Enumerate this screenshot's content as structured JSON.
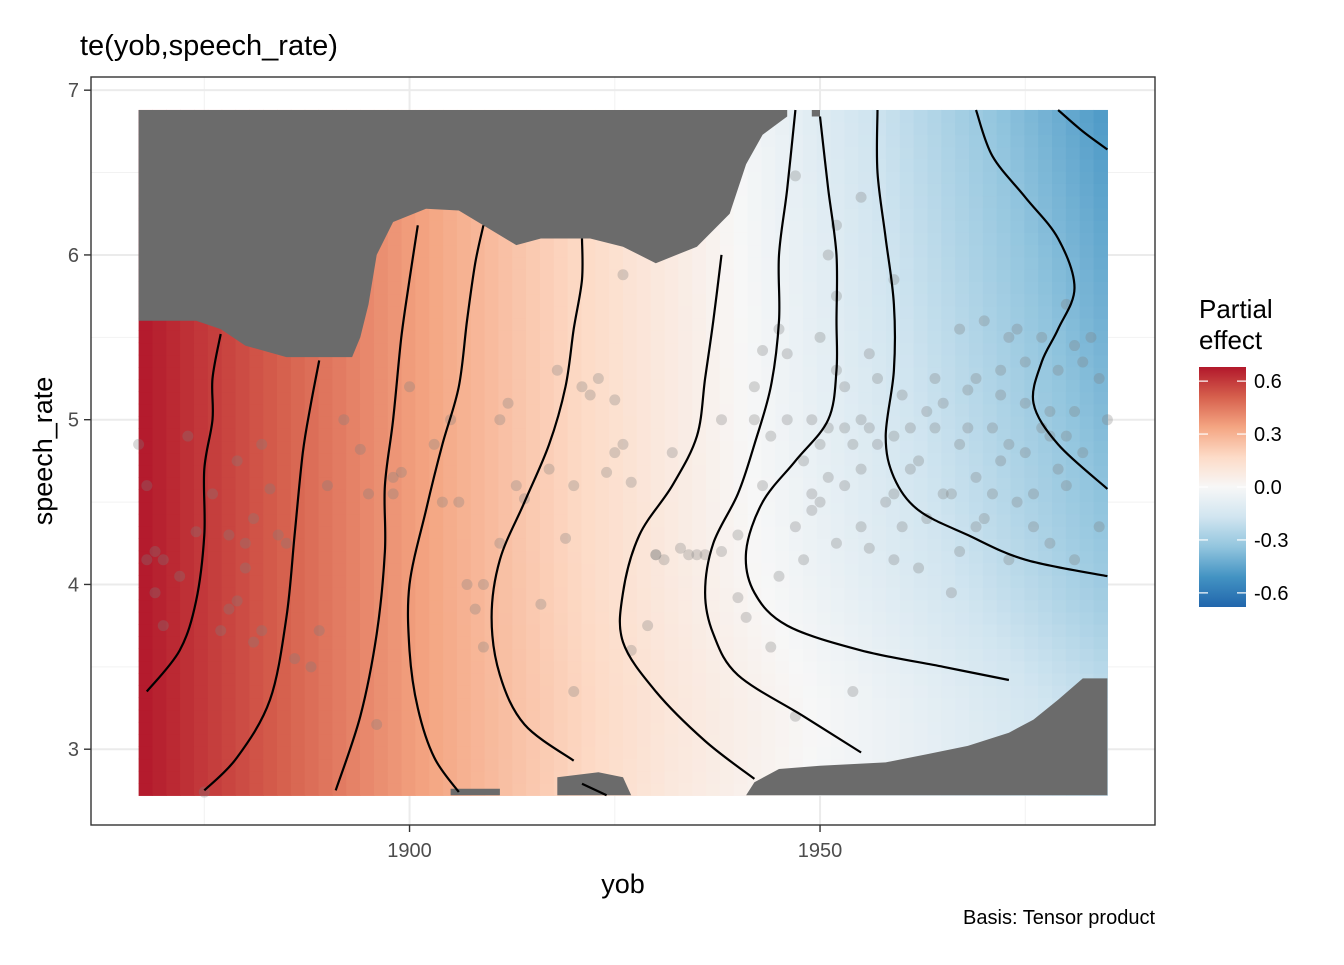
{
  "chart_data": {
    "type": "heatmap",
    "title": "te(yob,speech_rate)",
    "xlabel": "yob",
    "ylabel": "speech_rate",
    "caption": "Basis: Tensor product",
    "xlim": [
      1861.2,
      1990.8
    ],
    "ylim": [
      2.54,
      7.08
    ],
    "x_ticks": [
      1900,
      1950
    ],
    "x_tick_labels": [
      "1900",
      "1950"
    ],
    "y_ticks": [
      3,
      4,
      5,
      6,
      7
    ],
    "y_tick_labels": [
      "3",
      "4",
      "5",
      "6",
      "7"
    ],
    "x_minor_ticks": [
      1875,
      1925,
      1975
    ],
    "y_minor_ticks": [
      3.5,
      4.5,
      5.5,
      6.5
    ],
    "grid": true,
    "legend": {
      "title_lines": [
        "Partial",
        "effect"
      ],
      "position": "right",
      "limits": [
        -0.68,
        0.68
      ],
      "breaks": [
        0.6,
        0.3,
        0.0,
        -0.3,
        -0.6
      ],
      "labels": [
        "0.6",
        "0.3",
        "0.0",
        "-0.3",
        "-0.6"
      ],
      "palette": [
        "#b2182b",
        "#d6604d",
        "#f4a582",
        "#fddbc7",
        "#f7f7f7",
        "#d1e5f0",
        "#92c5de",
        "#4393c3",
        "#2166ac"
      ]
    },
    "na_color": "#6b6b6b",
    "data_region": {
      "yob_range": [
        1867,
        1985
      ],
      "speech_rate_range": [
        2.72,
        6.88
      ]
    },
    "mask_top": [
      [
        1867,
        5.6
      ],
      [
        1874,
        5.6
      ],
      [
        1877,
        5.55
      ],
      [
        1880,
        5.45
      ],
      [
        1885,
        5.38
      ],
      [
        1888,
        5.38
      ],
      [
        1893,
        5.38
      ],
      [
        1894,
        5.5
      ],
      [
        1895,
        5.7
      ],
      [
        1896,
        6.0
      ],
      [
        1898,
        6.2
      ],
      [
        1902,
        6.28
      ],
      [
        1906,
        6.27
      ],
      [
        1910,
        6.15
      ],
      [
        1913,
        6.06
      ],
      [
        1916,
        6.1
      ],
      [
        1922,
        6.1
      ],
      [
        1926,
        6.05
      ],
      [
        1930,
        5.95
      ],
      [
        1935,
        6.05
      ],
      [
        1939,
        6.25
      ],
      [
        1941,
        6.55
      ],
      [
        1943,
        6.73
      ],
      [
        1946,
        6.84
      ],
      [
        1946,
        6.88
      ],
      [
        1867,
        6.88
      ]
    ],
    "mask_top_right": [
      [
        1949,
        6.88
      ],
      [
        1949,
        6.84
      ],
      [
        1950,
        6.84
      ],
      [
        1950,
        6.88
      ]
    ],
    "mask_bottom": [
      [
        1905,
        2.72
      ],
      [
        1905,
        2.76
      ],
      [
        1908,
        2.76
      ],
      [
        1911,
        2.76
      ],
      [
        1911,
        2.72
      ]
    ],
    "mask_bottom_mid": [
      [
        1918,
        2.72
      ],
      [
        1918,
        2.83
      ],
      [
        1923,
        2.86
      ],
      [
        1926,
        2.83
      ],
      [
        1927,
        2.72
      ]
    ],
    "mask_bottom_right": [
      [
        1941,
        2.72
      ],
      [
        1942,
        2.8
      ],
      [
        1945,
        2.88
      ],
      [
        1950,
        2.9
      ],
      [
        1958,
        2.92
      ],
      [
        1963,
        2.97
      ],
      [
        1968,
        3.02
      ],
      [
        1973,
        3.1
      ],
      [
        1976,
        3.18
      ],
      [
        1979,
        3.3
      ],
      [
        1982,
        3.43
      ],
      [
        1985,
        3.43
      ],
      [
        1985,
        2.72
      ]
    ],
    "contours": [
      [
        [
          1868,
          3.35
        ],
        [
          1872,
          3.6
        ],
        [
          1874,
          3.9
        ],
        [
          1875,
          4.3
        ],
        [
          1875,
          4.7
        ],
        [
          1876,
          5.0
        ],
        [
          1876,
          5.25
        ],
        [
          1877,
          5.52
        ]
      ],
      [
        [
          1875,
          2.75
        ],
        [
          1879,
          2.95
        ],
        [
          1883,
          3.3
        ],
        [
          1885,
          3.8
        ],
        [
          1886,
          4.3
        ],
        [
          1887,
          4.8
        ],
        [
          1888,
          5.1
        ],
        [
          1889,
          5.36
        ]
      ],
      [
        [
          1891,
          2.75
        ],
        [
          1894,
          3.2
        ],
        [
          1896,
          3.7
        ],
        [
          1897,
          4.2
        ],
        [
          1897,
          4.6
        ],
        [
          1898,
          5.0
        ],
        [
          1899,
          5.5
        ],
        [
          1900,
          5.85
        ],
        [
          1901,
          6.18
        ]
      ],
      [
        [
          1906,
          2.74
        ],
        [
          1903,
          2.95
        ],
        [
          1901,
          3.25
        ],
        [
          1900,
          3.6
        ],
        [
          1900,
          4.0
        ],
        [
          1902,
          4.45
        ],
        [
          1904,
          4.85
        ],
        [
          1906,
          5.2
        ],
        [
          1907,
          5.6
        ],
        [
          1908,
          5.95
        ],
        [
          1909,
          6.18
        ]
      ],
      [
        [
          1920,
          2.93
        ],
        [
          1914,
          3.15
        ],
        [
          1911,
          3.45
        ],
        [
          1910,
          3.8
        ],
        [
          1911,
          4.15
        ],
        [
          1914,
          4.5
        ],
        [
          1917,
          4.85
        ],
        [
          1919,
          5.2
        ],
        [
          1920,
          5.55
        ],
        [
          1921,
          5.85
        ],
        [
          1921,
          6.1
        ]
      ],
      [
        [
          1942,
          2.82
        ],
        [
          1936,
          3.05
        ],
        [
          1930,
          3.35
        ],
        [
          1926,
          3.65
        ],
        [
          1926,
          3.95
        ],
        [
          1928,
          4.3
        ],
        [
          1932,
          4.6
        ],
        [
          1935,
          4.9
        ],
        [
          1936,
          5.25
        ],
        [
          1937,
          5.6
        ],
        [
          1938,
          6.0
        ]
      ],
      [
        [
          1955,
          2.98
        ],
        [
          1948,
          3.2
        ],
        [
          1940,
          3.45
        ],
        [
          1937,
          3.7
        ],
        [
          1936,
          3.95
        ],
        [
          1937,
          4.25
        ],
        [
          1940,
          4.55
        ],
        [
          1942,
          4.85
        ],
        [
          1944,
          5.2
        ],
        [
          1945,
          5.6
        ],
        [
          1945,
          6.0
        ],
        [
          1946,
          6.4
        ],
        [
          1947,
          6.88
        ]
      ],
      [
        [
          1973,
          3.42
        ],
        [
          1965,
          3.5
        ],
        [
          1955,
          3.6
        ],
        [
          1946,
          3.75
        ],
        [
          1942,
          3.95
        ],
        [
          1941,
          4.2
        ],
        [
          1943,
          4.5
        ],
        [
          1947,
          4.75
        ],
        [
          1951,
          5.0
        ],
        [
          1952,
          5.3
        ],
        [
          1952,
          5.6
        ],
        [
          1952,
          6.0
        ],
        [
          1951,
          6.4
        ],
        [
          1950,
          6.84
        ]
      ],
      [
        [
          1985,
          4.05
        ],
        [
          1975,
          4.15
        ],
        [
          1968,
          4.3
        ],
        [
          1962,
          4.45
        ],
        [
          1959,
          4.65
        ],
        [
          1958,
          4.9
        ],
        [
          1959,
          5.3
        ],
        [
          1959,
          5.7
        ],
        [
          1958,
          6.1
        ],
        [
          1957,
          6.5
        ],
        [
          1957,
          6.88
        ]
      ],
      [
        [
          1985,
          4.58
        ],
        [
          1979,
          4.85
        ],
        [
          1976,
          5.1
        ],
        [
          1977,
          5.35
        ],
        [
          1979,
          5.55
        ],
        [
          1981,
          5.8
        ],
        [
          1979,
          6.1
        ],
        [
          1975,
          6.35
        ],
        [
          1971,
          6.6
        ],
        [
          1969,
          6.88
        ]
      ],
      [
        [
          1985,
          6.64
        ],
        [
          1982,
          6.75
        ],
        [
          1979,
          6.88
        ]
      ],
      [
        [
          1921,
          2.79
        ],
        [
          1924,
          2.72
        ]
      ]
    ],
    "points": [
      [
        1867,
        4.85
      ],
      [
        1868,
        4.15
      ],
      [
        1868,
        4.6
      ],
      [
        1869,
        4.2
      ],
      [
        1869,
        3.95
      ],
      [
        1870,
        4.15
      ],
      [
        1870,
        3.75
      ],
      [
        1872,
        4.05
      ],
      [
        1873,
        4.9
      ],
      [
        1874,
        4.32
      ],
      [
        1875,
        2.74
      ],
      [
        1876,
        4.55
      ],
      [
        1877,
        3.72
      ],
      [
        1878,
        3.85
      ],
      [
        1878,
        4.3
      ],
      [
        1879,
        3.9
      ],
      [
        1879,
        4.75
      ],
      [
        1880,
        4.1
      ],
      [
        1880,
        4.25
      ],
      [
        1881,
        3.65
      ],
      [
        1881,
        4.4
      ],
      [
        1882,
        3.72
      ],
      [
        1882,
        4.85
      ],
      [
        1883,
        4.58
      ],
      [
        1884,
        4.3
      ],
      [
        1885,
        4.25
      ],
      [
        1886,
        3.55
      ],
      [
        1888,
        3.5
      ],
      [
        1889,
        3.72
      ],
      [
        1890,
        4.6
      ],
      [
        1892,
        5.0
      ],
      [
        1894,
        4.82
      ],
      [
        1895,
        4.55
      ],
      [
        1896,
        3.15
      ],
      [
        1898,
        4.65
      ],
      [
        1898,
        4.55
      ],
      [
        1899,
        4.68
      ],
      [
        1900,
        5.2
      ],
      [
        1903,
        4.85
      ],
      [
        1904,
        4.5
      ],
      [
        1905,
        5.0
      ],
      [
        1906,
        4.5
      ],
      [
        1907,
        4.0
      ],
      [
        1908,
        3.85
      ],
      [
        1909,
        3.62
      ],
      [
        1909,
        4.0
      ],
      [
        1911,
        4.25
      ],
      [
        1911,
        5.0
      ],
      [
        1912,
        5.1
      ],
      [
        1913,
        4.6
      ],
      [
        1914,
        4.52
      ],
      [
        1916,
        3.88
      ],
      [
        1917,
        4.7
      ],
      [
        1918,
        5.3
      ],
      [
        1919,
        4.28
      ],
      [
        1920,
        3.35
      ],
      [
        1920,
        4.6
      ],
      [
        1921,
        5.2
      ],
      [
        1922,
        5.15
      ],
      [
        1923,
        5.25
      ],
      [
        1924,
        4.68
      ],
      [
        1925,
        4.8
      ],
      [
        1925,
        5.12
      ],
      [
        1926,
        4.85
      ],
      [
        1926,
        5.88
      ],
      [
        1927,
        4.62
      ],
      [
        1927,
        3.6
      ],
      [
        1929,
        3.75
      ],
      [
        1930,
        4.18
      ],
      [
        1930,
        4.18
      ],
      [
        1931,
        4.15
      ],
      [
        1932,
        4.8
      ],
      [
        1933,
        4.22
      ],
      [
        1934,
        4.18
      ],
      [
        1935,
        4.18
      ],
      [
        1936,
        4.18
      ],
      [
        1938,
        5.0
      ],
      [
        1938,
        4.2
      ],
      [
        1940,
        4.3
      ],
      [
        1940,
        3.92
      ],
      [
        1941,
        3.8
      ],
      [
        1942,
        5.2
      ],
      [
        1942,
        5.0
      ],
      [
        1943,
        5.42
      ],
      [
        1943,
        4.6
      ],
      [
        1944,
        3.62
      ],
      [
        1945,
        5.55
      ],
      [
        1945,
        4.05
      ],
      [
        1946,
        5.0
      ],
      [
        1946,
        5.4
      ],
      [
        1947,
        3.2
      ],
      [
        1948,
        4.75
      ],
      [
        1948,
        4.15
      ],
      [
        1949,
        4.55
      ],
      [
        1949,
        5.0
      ],
      [
        1950,
        5.5
      ],
      [
        1950,
        4.5
      ],
      [
        1951,
        4.95
      ],
      [
        1952,
        5.3
      ],
      [
        1952,
        4.25
      ],
      [
        1953,
        4.6
      ],
      [
        1954,
        4.85
      ],
      [
        1954,
        3.35
      ],
      [
        1955,
        5.0
      ],
      [
        1955,
        4.7
      ],
      [
        1956,
        4.22
      ],
      [
        1956,
        5.4
      ],
      [
        1957,
        4.85
      ],
      [
        1958,
        4.5
      ],
      [
        1959,
        4.15
      ],
      [
        1959,
        4.9
      ],
      [
        1960,
        4.35
      ],
      [
        1961,
        4.7
      ],
      [
        1962,
        4.1
      ],
      [
        1963,
        5.05
      ],
      [
        1964,
        4.95
      ],
      [
        1965,
        4.55
      ],
      [
        1966,
        3.95
      ],
      [
        1967,
        4.2
      ],
      [
        1967,
        5.55
      ],
      [
        1968,
        5.18
      ],
      [
        1969,
        4.35
      ],
      [
        1969,
        4.65
      ],
      [
        1970,
        5.6
      ],
      [
        1971,
        4.95
      ],
      [
        1972,
        4.75
      ],
      [
        1972,
        5.3
      ],
      [
        1973,
        4.15
      ],
      [
        1973,
        5.5
      ],
      [
        1974,
        4.5
      ],
      [
        1975,
        4.8
      ],
      [
        1975,
        5.1
      ],
      [
        1976,
        4.55
      ],
      [
        1977,
        5.5
      ],
      [
        1978,
        4.25
      ],
      [
        1978,
        4.9
      ],
      [
        1979,
        5.3
      ],
      [
        1980,
        4.6
      ],
      [
        1980,
        5.7
      ],
      [
        1981,
        4.15
      ],
      [
        1981,
        5.05
      ],
      [
        1982,
        4.8
      ],
      [
        1983,
        5.5
      ],
      [
        1984,
        4.35
      ],
      [
        1984,
        5.25
      ],
      [
        1985,
        5.0
      ],
      [
        1952,
        5.75
      ],
      [
        1951,
        6.0
      ],
      [
        1947,
        6.48
      ],
      [
        1952,
        6.18
      ],
      [
        1955,
        6.35
      ],
      [
        1959,
        5.85
      ],
      [
        1944,
        4.9
      ],
      [
        1947,
        4.35
      ],
      [
        1950,
        4.85
      ],
      [
        1953,
        5.2
      ],
      [
        1956,
        4.95
      ],
      [
        1960,
        5.15
      ],
      [
        1962,
        4.75
      ],
      [
        1964,
        5.25
      ],
      [
        1966,
        4.55
      ],
      [
        1968,
        4.95
      ],
      [
        1970,
        4.4
      ],
      [
        1972,
        5.15
      ],
      [
        1974,
        5.55
      ],
      [
        1976,
        4.35
      ],
      [
        1978,
        5.05
      ],
      [
        1980,
        4.9
      ],
      [
        1982,
        5.35
      ],
      [
        1949,
        4.45
      ],
      [
        1951,
        4.65
      ],
      [
        1953,
        4.95
      ],
      [
        1955,
        4.35
      ],
      [
        1957,
        5.25
      ],
      [
        1959,
        4.55
      ],
      [
        1961,
        4.95
      ],
      [
        1963,
        4.4
      ],
      [
        1965,
        5.1
      ],
      [
        1967,
        4.85
      ],
      [
        1969,
        5.25
      ],
      [
        1971,
        4.55
      ],
      [
        1973,
        4.85
      ],
      [
        1975,
        5.35
      ],
      [
        1977,
        4.95
      ],
      [
        1979,
        4.7
      ],
      [
        1981,
        5.45
      ]
    ]
  }
}
